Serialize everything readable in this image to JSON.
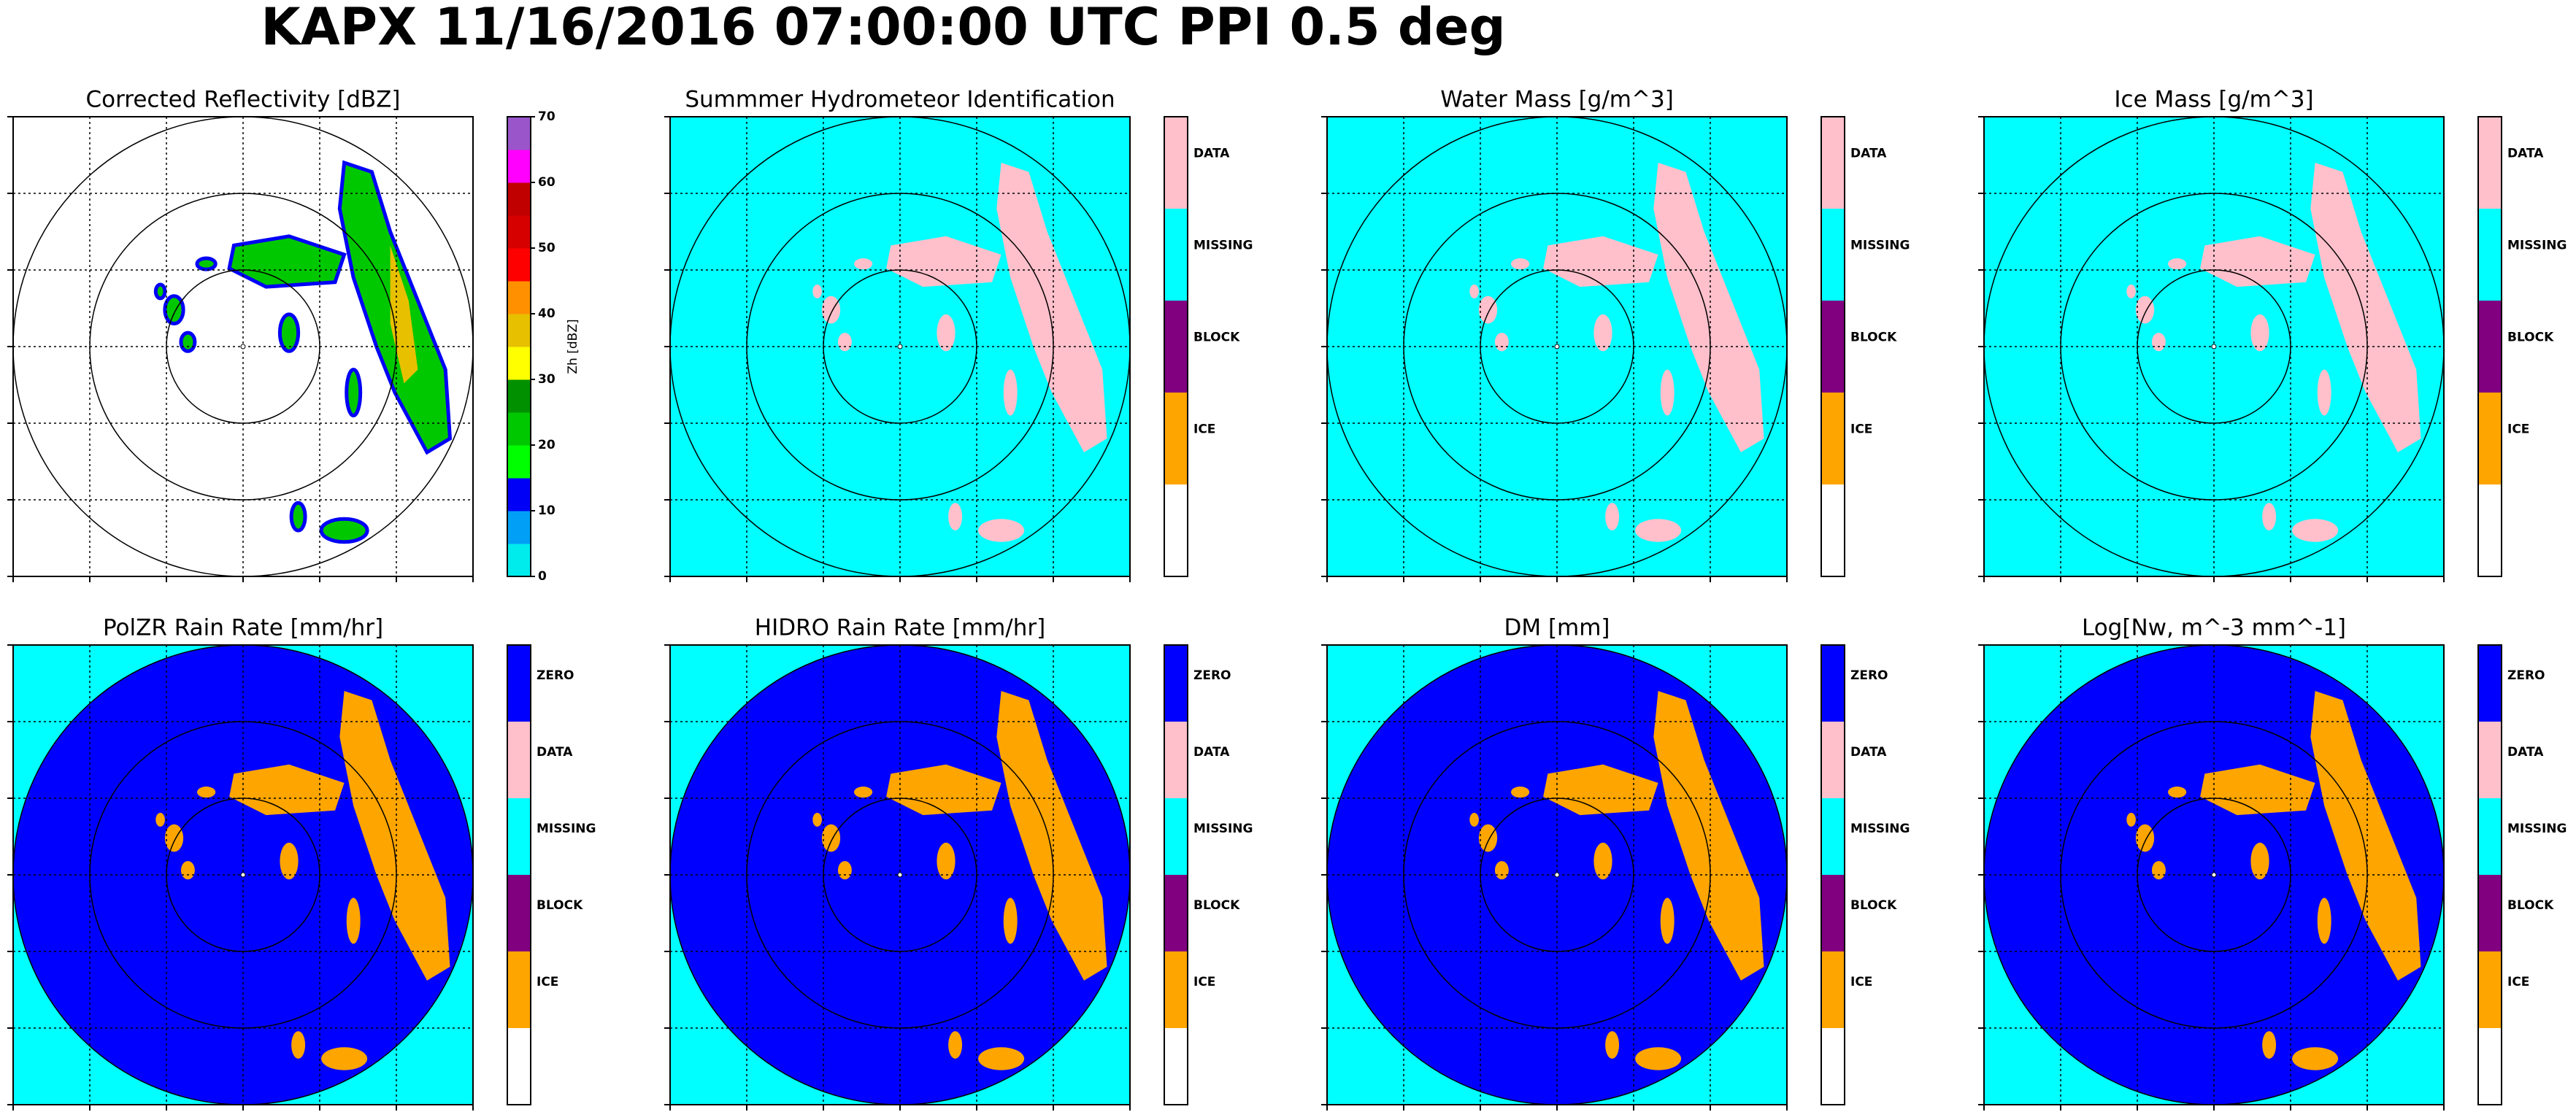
{
  "title": "KAPX 11/16/2016 07:00:00 UTC PPI 0.5 deg",
  "panels": [
    {
      "title": "Corrected Reflectivity [dBZ]",
      "background": "#ffffff",
      "colorbar": {
        "label": "Zh [dBZ]",
        "lim": [
          0,
          70
        ],
        "ticks": [
          0,
          10,
          20,
          30,
          40,
          50,
          60,
          70
        ],
        "colors": [
          "#00ecec",
          "#01a0f6",
          "#0000f6",
          "#00ff00",
          "#00c800",
          "#009000",
          "#ffff00",
          "#e7c000",
          "#ff9000",
          "#ff0000",
          "#d60000",
          "#c00000",
          "#ff00ff",
          "#9955c9"
        ]
      }
    },
    {
      "title": "Summmer Hydrometeor Identification",
      "background": "#00ffff",
      "echo": "#ffc0cb",
      "colorbar": {
        "labels": [
          "DATA",
          "MISSING",
          "BLOCK",
          "ICE"
        ],
        "colors": [
          "#ffc0cb",
          "#00ffff",
          "#800080",
          "#ffa500",
          "#ffffff"
        ]
      }
    },
    {
      "title": "Water Mass [g/m^3]",
      "background": "#00ffff",
      "echo": "#ffc0cb",
      "colorbar": {
        "labels": [
          "DATA",
          "MISSING",
          "BLOCK",
          "ICE"
        ],
        "colors": [
          "#ffc0cb",
          "#00ffff",
          "#800080",
          "#ffa500",
          "#ffffff"
        ]
      }
    },
    {
      "title": "Ice Mass [g/m^3]",
      "background": "#00ffff",
      "echo": "#ffc0cb",
      "colorbar": {
        "labels": [
          "DATA",
          "MISSING",
          "BLOCK",
          "ICE"
        ],
        "colors": [
          "#ffc0cb",
          "#00ffff",
          "#800080",
          "#ffa500",
          "#ffffff"
        ]
      }
    },
    {
      "title": "PolZR Rain Rate [mm/hr]",
      "background": "#00ffff",
      "disc": "#0000ff",
      "echo": "#ffa500",
      "colorbar": {
        "labels": [
          "ZERO",
          "DATA",
          "MISSING",
          "BLOCK",
          "ICE"
        ],
        "colors": [
          "#0000ff",
          "#ffc0cb",
          "#00ffff",
          "#800080",
          "#ffa500",
          "#ffffff"
        ]
      }
    },
    {
      "title": "HIDRO Rain Rate [mm/hr]",
      "background": "#00ffff",
      "disc": "#0000ff",
      "echo": "#ffa500",
      "colorbar": {
        "labels": [
          "ZERO",
          "DATA",
          "MISSING",
          "BLOCK",
          "ICE"
        ],
        "colors": [
          "#0000ff",
          "#ffc0cb",
          "#00ffff",
          "#800080",
          "#ffa500",
          "#ffffff"
        ]
      }
    },
    {
      "title": "DM [mm]",
      "background": "#00ffff",
      "disc": "#0000ff",
      "echo": "#ffa500",
      "colorbar": {
        "labels": [
          "ZERO",
          "DATA",
          "MISSING",
          "BLOCK",
          "ICE"
        ],
        "colors": [
          "#0000ff",
          "#ffc0cb",
          "#00ffff",
          "#800080",
          "#ffa500",
          "#ffffff"
        ]
      }
    },
    {
      "title": "Log[Nw, m^-3 mm^-1]",
      "background": "#00ffff",
      "disc": "#0000ff",
      "echo": "#ffa500",
      "colorbar": {
        "labels": [
          "ZERO",
          "DATA",
          "MISSING",
          "BLOCK",
          "ICE"
        ],
        "colors": [
          "#0000ff",
          "#ffc0cb",
          "#00ffff",
          "#800080",
          "#ffa500",
          "#ffffff"
        ]
      }
    }
  ]
}
